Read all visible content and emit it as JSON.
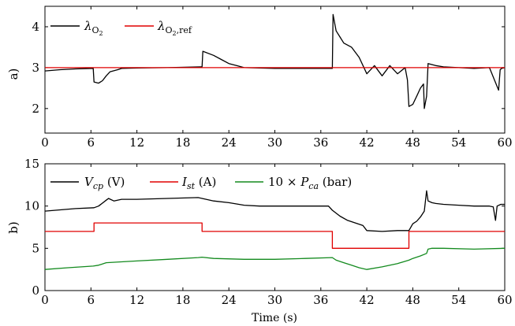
{
  "chart_data": [
    {
      "type": "line",
      "panel_label": "a)",
      "xlim": [
        0,
        60
      ],
      "ylim": [
        1.4,
        4.5
      ],
      "xticks": [
        0,
        6,
        12,
        18,
        24,
        30,
        36,
        42,
        48,
        54,
        60
      ],
      "yticks": [
        2,
        3,
        4
      ],
      "xlabel": "",
      "ylabel": "",
      "legend_placement": "top-left",
      "series": [
        {
          "name": "λ_O2",
          "color": "#000000",
          "x": [
            0,
            2,
            4,
            6.3,
            6.4,
            7,
            7.5,
            8,
            8.5,
            9.5,
            10,
            12,
            16,
            20.5,
            20.6,
            22,
            23,
            24,
            25,
            26,
            30,
            34,
            37.5,
            37.6,
            38,
            38.5,
            39,
            40,
            41,
            42,
            43,
            44,
            45,
            46,
            47,
            47.3,
            47.5,
            48,
            48.5,
            49,
            49.4,
            49.5,
            49.8,
            50,
            51,
            52,
            54,
            56,
            58,
            59.2,
            59.4,
            59.6,
            60
          ],
          "y": [
            2.92,
            2.95,
            2.97,
            2.98,
            2.65,
            2.62,
            2.68,
            2.8,
            2.9,
            2.95,
            2.98,
            2.99,
            3.0,
            3.02,
            3.4,
            3.3,
            3.2,
            3.1,
            3.05,
            3.0,
            2.98,
            2.98,
            2.98,
            4.3,
            3.9,
            3.75,
            3.6,
            3.5,
            3.25,
            2.85,
            3.05,
            2.8,
            3.05,
            2.85,
            3.0,
            2.7,
            2.05,
            2.1,
            2.3,
            2.5,
            2.6,
            2.0,
            2.3,
            3.1,
            3.05,
            3.02,
            3.0,
            2.98,
            3.0,
            2.45,
            2.95,
            2.98,
            3.0
          ]
        },
        {
          "name": "λ_O2,ref",
          "color": "#e00000",
          "x": [
            0,
            60
          ],
          "y": [
            3.0,
            3.0
          ]
        }
      ]
    },
    {
      "type": "line",
      "panel_label": "b)",
      "xlim": [
        0,
        60
      ],
      "ylim": [
        0,
        15
      ],
      "xticks": [
        0,
        6,
        12,
        18,
        24,
        30,
        36,
        42,
        48,
        54,
        60
      ],
      "yticks": [
        0,
        5,
        10,
        15
      ],
      "xlabel": "Time (s)",
      "ylabel": "",
      "legend_placement": "top-left",
      "series": [
        {
          "name": "V_cp (V)",
          "color": "#000000",
          "x": [
            0,
            2,
            4,
            6.4,
            7,
            8,
            8.3,
            9,
            10,
            12,
            16,
            20,
            20.5,
            22,
            24,
            26,
            28,
            30,
            34,
            37,
            37.5,
            38.5,
            39.5,
            40.5,
            41.5,
            42,
            44,
            46,
            47.5,
            48,
            48.5,
            49,
            49.5,
            49.8,
            50,
            50.5,
            51,
            52,
            54,
            56,
            58,
            58.5,
            58.8,
            59,
            59.5,
            60
          ],
          "y": [
            9.4,
            9.55,
            9.7,
            9.8,
            10.0,
            10.7,
            10.9,
            10.6,
            10.8,
            10.8,
            10.9,
            11.0,
            10.9,
            10.6,
            10.4,
            10.1,
            10.0,
            10.0,
            10.0,
            10.0,
            9.5,
            8.8,
            8.3,
            8.0,
            7.7,
            7.1,
            7.0,
            7.1,
            7.1,
            7.9,
            8.2,
            8.7,
            9.4,
            11.8,
            10.6,
            10.4,
            10.3,
            10.2,
            10.1,
            10.0,
            10.0,
            9.9,
            8.3,
            10.0,
            10.2,
            10.2
          ]
        },
        {
          "name": "I_st (A)",
          "color": "#e00000",
          "x": [
            0,
            6.4,
            6.4,
            20.5,
            20.5,
            37.5,
            37.5,
            47.5,
            47.5,
            60
          ],
          "y": [
            7,
            7,
            8,
            8,
            7,
            7,
            5,
            5,
            7,
            7
          ]
        },
        {
          "name": "10 × P_ca (bar)",
          "color": "#138a1e",
          "x": [
            0,
            3,
            6.3,
            7,
            8,
            12,
            16,
            20,
            20.5,
            22,
            26,
            30,
            34,
            37.5,
            38,
            39,
            40,
            41,
            42,
            44,
            46,
            47.5,
            48,
            49,
            49.8,
            50,
            50.5,
            52,
            56,
            60
          ],
          "y": [
            2.5,
            2.7,
            2.9,
            3.0,
            3.3,
            3.5,
            3.7,
            3.9,
            3.95,
            3.8,
            3.7,
            3.7,
            3.8,
            3.9,
            3.6,
            3.3,
            3.0,
            2.7,
            2.5,
            2.8,
            3.2,
            3.6,
            3.8,
            4.1,
            4.4,
            4.9,
            5.0,
            5.0,
            4.9,
            5.0
          ]
        }
      ]
    }
  ],
  "legend_a": {
    "item1": {
      "base": "λ",
      "sub": "O",
      "subsub": "2"
    },
    "item2": {
      "base": "λ",
      "sub": "O",
      "subsub": "2",
      "subrest": ",ref"
    }
  },
  "legend_b": {
    "item1": {
      "base": "V",
      "sub": "cp",
      "unit": " (V)"
    },
    "item2": {
      "base": "I",
      "sub": "st",
      "unit": " (A)"
    },
    "item3": {
      "prefix": "10 × ",
      "base": "P",
      "sub": "ca",
      "unit": " (bar)"
    }
  }
}
